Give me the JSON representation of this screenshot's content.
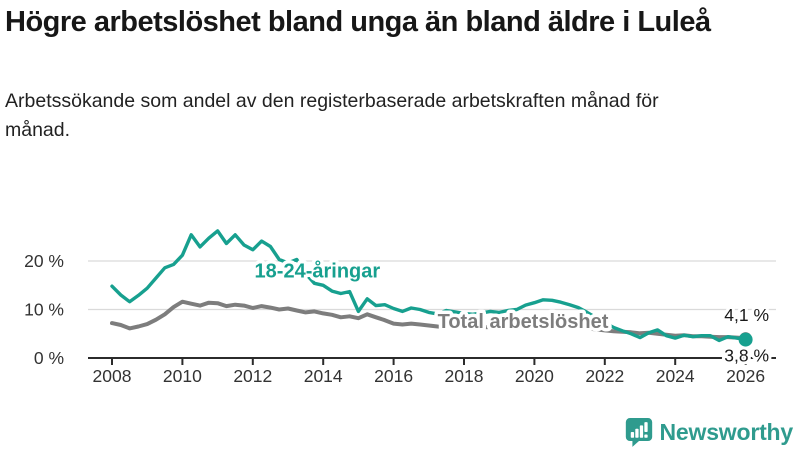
{
  "title": "Högre arbetslöshet bland unga än bland äldre i Luleå",
  "subtitle": "Arbetssökande som andel av den registerbaserade arbetskraften månad för månad.",
  "footer": {
    "brand": "Newsworthy"
  },
  "colors": {
    "youth": "#17A08F",
    "total": "#7D7D7D",
    "grid": "#DADADA",
    "axis": "#2B2B2B",
    "tick_text": "#333333",
    "value_label_text": "#1A1A1A",
    "logo": "#2F9B8E"
  },
  "chart_data": {
    "type": "line",
    "title": "Högre arbetslöshet bland unga än bland äldre i Luleå",
    "subtitle": "Arbetssökande som andel av den registerbaserade arbetskraften månad för månad.",
    "grid": true,
    "legend_position": "inline-labels",
    "y_axis": {
      "unit": "%",
      "range": [
        0,
        27
      ],
      "ticks": [
        {
          "value": 0,
          "label": "0 %"
        },
        {
          "value": 10,
          "label": "10 %"
        },
        {
          "value": 20,
          "label": "20 %"
        }
      ]
    },
    "x_axis": {
      "range": [
        2008,
        2026.2
      ],
      "ticks": [
        {
          "year": 2008,
          "label": "2008"
        },
        {
          "year": 2010,
          "label": "2010"
        },
        {
          "year": 2012,
          "label": "2012"
        },
        {
          "year": 2014,
          "label": "2014"
        },
        {
          "year": 2016,
          "label": "2016"
        },
        {
          "year": 2018,
          "label": "2018"
        },
        {
          "year": 2020,
          "label": "2020"
        },
        {
          "year": 2022,
          "label": "2022"
        },
        {
          "year": 2024,
          "label": "2024"
        },
        {
          "year": 2026,
          "label": "2026"
        }
      ]
    },
    "x": [
      2008,
      2008.25,
      2008.5,
      2008.75,
      2009,
      2009.25,
      2009.5,
      2009.75,
      2010,
      2010.25,
      2010.5,
      2010.75,
      2011,
      2011.25,
      2011.5,
      2011.75,
      2012,
      2012.25,
      2012.5,
      2012.75,
      2013,
      2013.25,
      2013.5,
      2013.75,
      2014,
      2014.25,
      2014.5,
      2014.75,
      2015,
      2015.25,
      2015.5,
      2015.75,
      2016,
      2016.25,
      2016.5,
      2016.75,
      2017,
      2017.25,
      2017.5,
      2017.75,
      2018,
      2018.25,
      2018.5,
      2018.75,
      2019,
      2019.25,
      2019.5,
      2019.75,
      2020,
      2020.25,
      2020.5,
      2020.75,
      2021,
      2021.25,
      2021.5,
      2021.75,
      2022,
      2022.25,
      2022.5,
      2022.75,
      2023,
      2023.25,
      2023.5,
      2023.75,
      2024,
      2024.25,
      2024.5,
      2024.75,
      2025,
      2025.25,
      2025.5,
      2025.75,
      2026
    ],
    "series": [
      {
        "id": "youth",
        "label": "18-24-åringar",
        "color": "#17A08F",
        "label_anchor": {
          "year": 2012.05,
          "value": 17.7
        },
        "end_value_label": "3,8 %",
        "last_value": 3.8,
        "values": [
          14.8,
          13.0,
          11.6,
          12.9,
          14.4,
          16.5,
          18.6,
          19.3,
          21.2,
          25.4,
          22.9,
          24.7,
          26.2,
          23.6,
          25.4,
          23.3,
          22.3,
          24.1,
          23.0,
          20.3,
          19.6,
          20.3,
          17.4,
          15.4,
          15.0,
          13.8,
          13.3,
          13.7,
          9.6,
          12.2,
          10.8,
          11.0,
          10.2,
          9.6,
          10.3,
          10.0,
          9.4,
          9.1,
          9.8,
          9.5,
          9.2,
          9.0,
          9.3,
          9.6,
          9.4,
          9.8,
          10.0,
          10.9,
          11.4,
          12.0,
          11.9,
          11.5,
          11.0,
          10.4,
          9.4,
          8.3,
          7.2,
          6.3,
          5.6,
          5.0,
          4.2,
          5.2,
          5.8,
          4.6,
          4.1,
          4.7,
          4.4,
          4.6,
          4.6,
          3.6,
          4.4,
          4.1,
          3.8
        ]
      },
      {
        "id": "total",
        "label": "Total arbetslöshet",
        "color": "#7D7D7D",
        "label_anchor": {
          "year": 2017.25,
          "value": 7.3
        },
        "end_value_label": "4,1 %",
        "last_value": 4.1,
        "values": [
          7.2,
          6.8,
          6.1,
          6.5,
          7.0,
          7.9,
          9.0,
          10.5,
          11.6,
          11.2,
          10.8,
          11.4,
          11.3,
          10.7,
          11.0,
          10.8,
          10.3,
          10.7,
          10.4,
          10.0,
          10.2,
          9.8,
          9.4,
          9.6,
          9.2,
          8.9,
          8.4,
          8.6,
          8.2,
          9.0,
          8.4,
          7.8,
          7.1,
          6.9,
          7.1,
          6.9,
          6.7,
          6.5,
          6.4,
          6.4,
          6.3,
          6.2,
          6.3,
          6.4,
          6.2,
          6.3,
          6.4,
          6.7,
          7.0,
          7.6,
          7.4,
          7.2,
          6.8,
          6.4,
          6.1,
          5.9,
          5.7,
          5.5,
          5.4,
          5.3,
          5.1,
          5.2,
          5.0,
          4.8,
          4.6,
          4.7,
          4.5,
          4.5,
          4.4,
          4.3,
          4.3,
          4.2,
          4.1
        ]
      }
    ]
  }
}
